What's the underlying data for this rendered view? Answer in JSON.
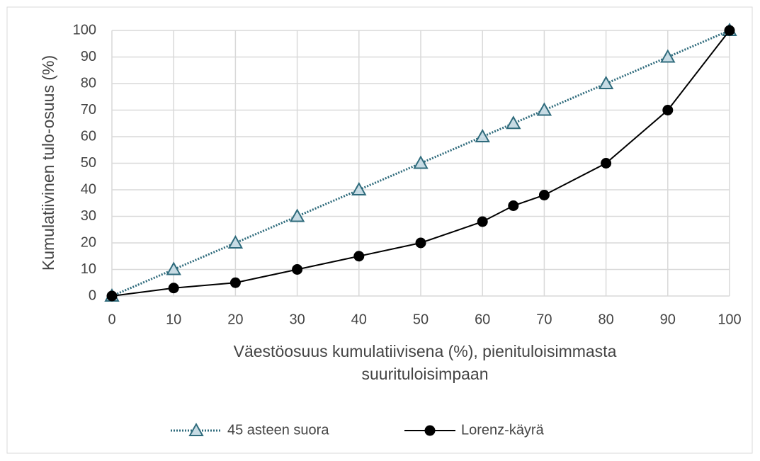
{
  "chart_data": {
    "type": "line",
    "x_label": "Väestöosuus kumulatiivisena (%), pienituloisimmasta suurituloisimpaan",
    "y_label": "Kumulatiivinen tulo-osuus (%)",
    "x": [
      0,
      10,
      20,
      30,
      40,
      50,
      60,
      65,
      70,
      80,
      90,
      100
    ],
    "series": [
      {
        "name": "45 asteen suora",
        "color": "#2f6b7c",
        "marker": "triangle",
        "line_style": "dotted",
        "values": [
          0,
          10,
          20,
          30,
          40,
          50,
          60,
          65,
          70,
          80,
          90,
          100
        ]
      },
      {
        "name": "Lorenz-käyrä",
        "color": "#000000",
        "marker": "circle",
        "line_style": "solid",
        "values": [
          0,
          3,
          5,
          10,
          15,
          20,
          28,
          34,
          38,
          50,
          70,
          100
        ]
      }
    ],
    "xlim": [
      0,
      100
    ],
    "xticks": [
      0,
      10,
      20,
      30,
      40,
      50,
      60,
      70,
      80,
      90,
      100
    ],
    "ylim": [
      0,
      100
    ],
    "yticks": [
      0,
      10,
      20,
      30,
      40,
      50,
      60,
      70,
      80,
      90,
      100
    ],
    "grid": true,
    "legend": "bottom"
  }
}
